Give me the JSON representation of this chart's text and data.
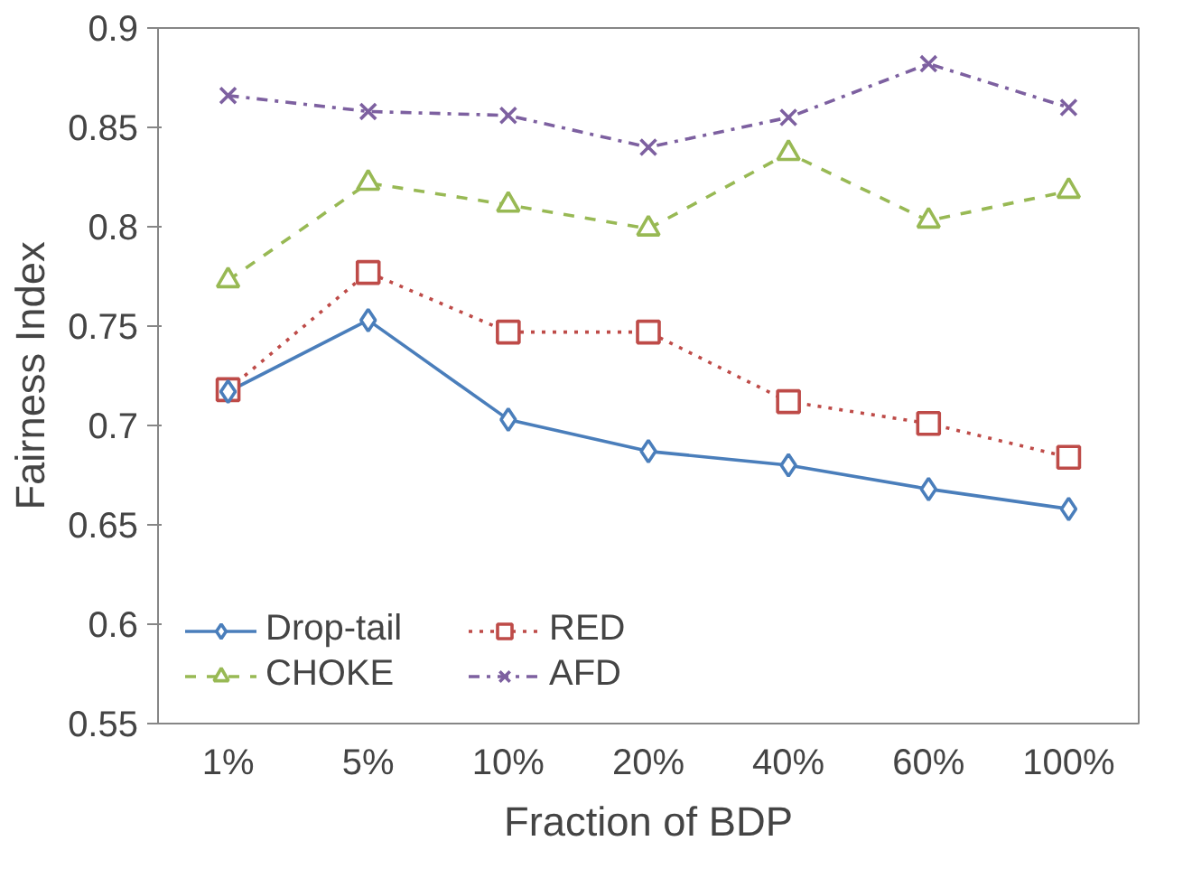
{
  "chart_data": {
    "type": "line",
    "xlabel": "Fraction of BDP",
    "ylabel": "Fairness Index",
    "categories": [
      "1%",
      "5%",
      "10%",
      "20%",
      "40%",
      "60%",
      "100%"
    ],
    "ylim": [
      0.55,
      0.9
    ],
    "yticks": [
      0.55,
      0.6,
      0.65,
      0.7,
      0.75,
      0.8,
      0.85,
      0.9
    ],
    "grid": false,
    "legend": "bottom left",
    "series": [
      {
        "name": "Drop-tail",
        "color": "#4a7ebb",
        "marker": "diamond",
        "line_style": "solid",
        "values": [
          0.717,
          0.753,
          0.703,
          0.687,
          0.68,
          0.668,
          0.658
        ]
      },
      {
        "name": "RED",
        "color": "#be4b48",
        "marker": "square",
        "line_style": "dotted",
        "values": [
          0.718,
          0.777,
          0.747,
          0.747,
          0.712,
          0.701,
          0.684
        ]
      },
      {
        "name": "CHOKE",
        "color": "#98b954",
        "marker": "triangle",
        "line_style": "dashed",
        "values": [
          0.773,
          0.822,
          0.811,
          0.799,
          0.837,
          0.803,
          0.818
        ]
      },
      {
        "name": "AFD",
        "color": "#7d60a0",
        "marker": "cross",
        "line_style": "dashdot",
        "values": [
          0.866,
          0.858,
          0.856,
          0.84,
          0.855,
          0.882,
          0.86
        ]
      }
    ]
  }
}
